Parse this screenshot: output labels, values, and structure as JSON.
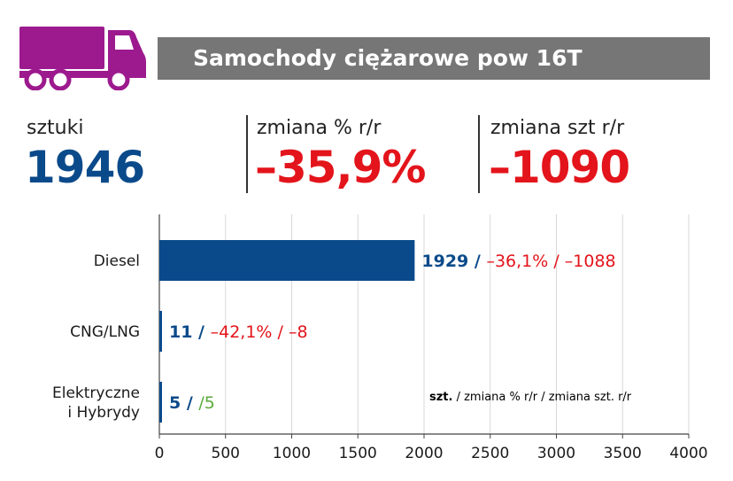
{
  "header": {
    "title": "Samochody ciężarowe pow 16T",
    "icon": "truck-icon",
    "icon_color": "#9c1a8e"
  },
  "kpis": [
    {
      "label": "sztuki",
      "value": "1946",
      "color": "#0b4a8a"
    },
    {
      "label": "zmiana % r/r",
      "value": "–35,9%",
      "color": "#e3141b"
    },
    {
      "label": "zmiana szt r/r",
      "value": "–1090",
      "color": "#e3141b"
    }
  ],
  "chart_data": {
    "type": "bar",
    "orientation": "horizontal",
    "categories": [
      "Diesel",
      "CNG/LNG",
      "Elektryczne i Hybrydy"
    ],
    "category_lines": [
      [
        "Diesel"
      ],
      [
        "CNG/LNG"
      ],
      [
        "Elektryczne",
        "i Hybrydy"
      ]
    ],
    "values": [
      1929,
      11,
      5
    ],
    "pct_change": [
      "–36,1%",
      "–42,1%",
      ""
    ],
    "abs_change": [
      "–1088",
      "–8",
      "5"
    ],
    "abs_change_colors": [
      "#e3141b",
      "#e3141b",
      "#5aaa3c"
    ],
    "xlim": [
      0,
      4000
    ],
    "xticks": [
      0,
      500,
      1000,
      1500,
      2000,
      2500,
      3000,
      3500,
      4000
    ],
    "grid": true,
    "bar_color": "#0b4a8a",
    "value_color": "#0b4a8a",
    "change_color": "#e3141b",
    "legend": {
      "strong": "szt.",
      "rest": " / zmiana % r/r / zmiana szt. r/r"
    }
  }
}
